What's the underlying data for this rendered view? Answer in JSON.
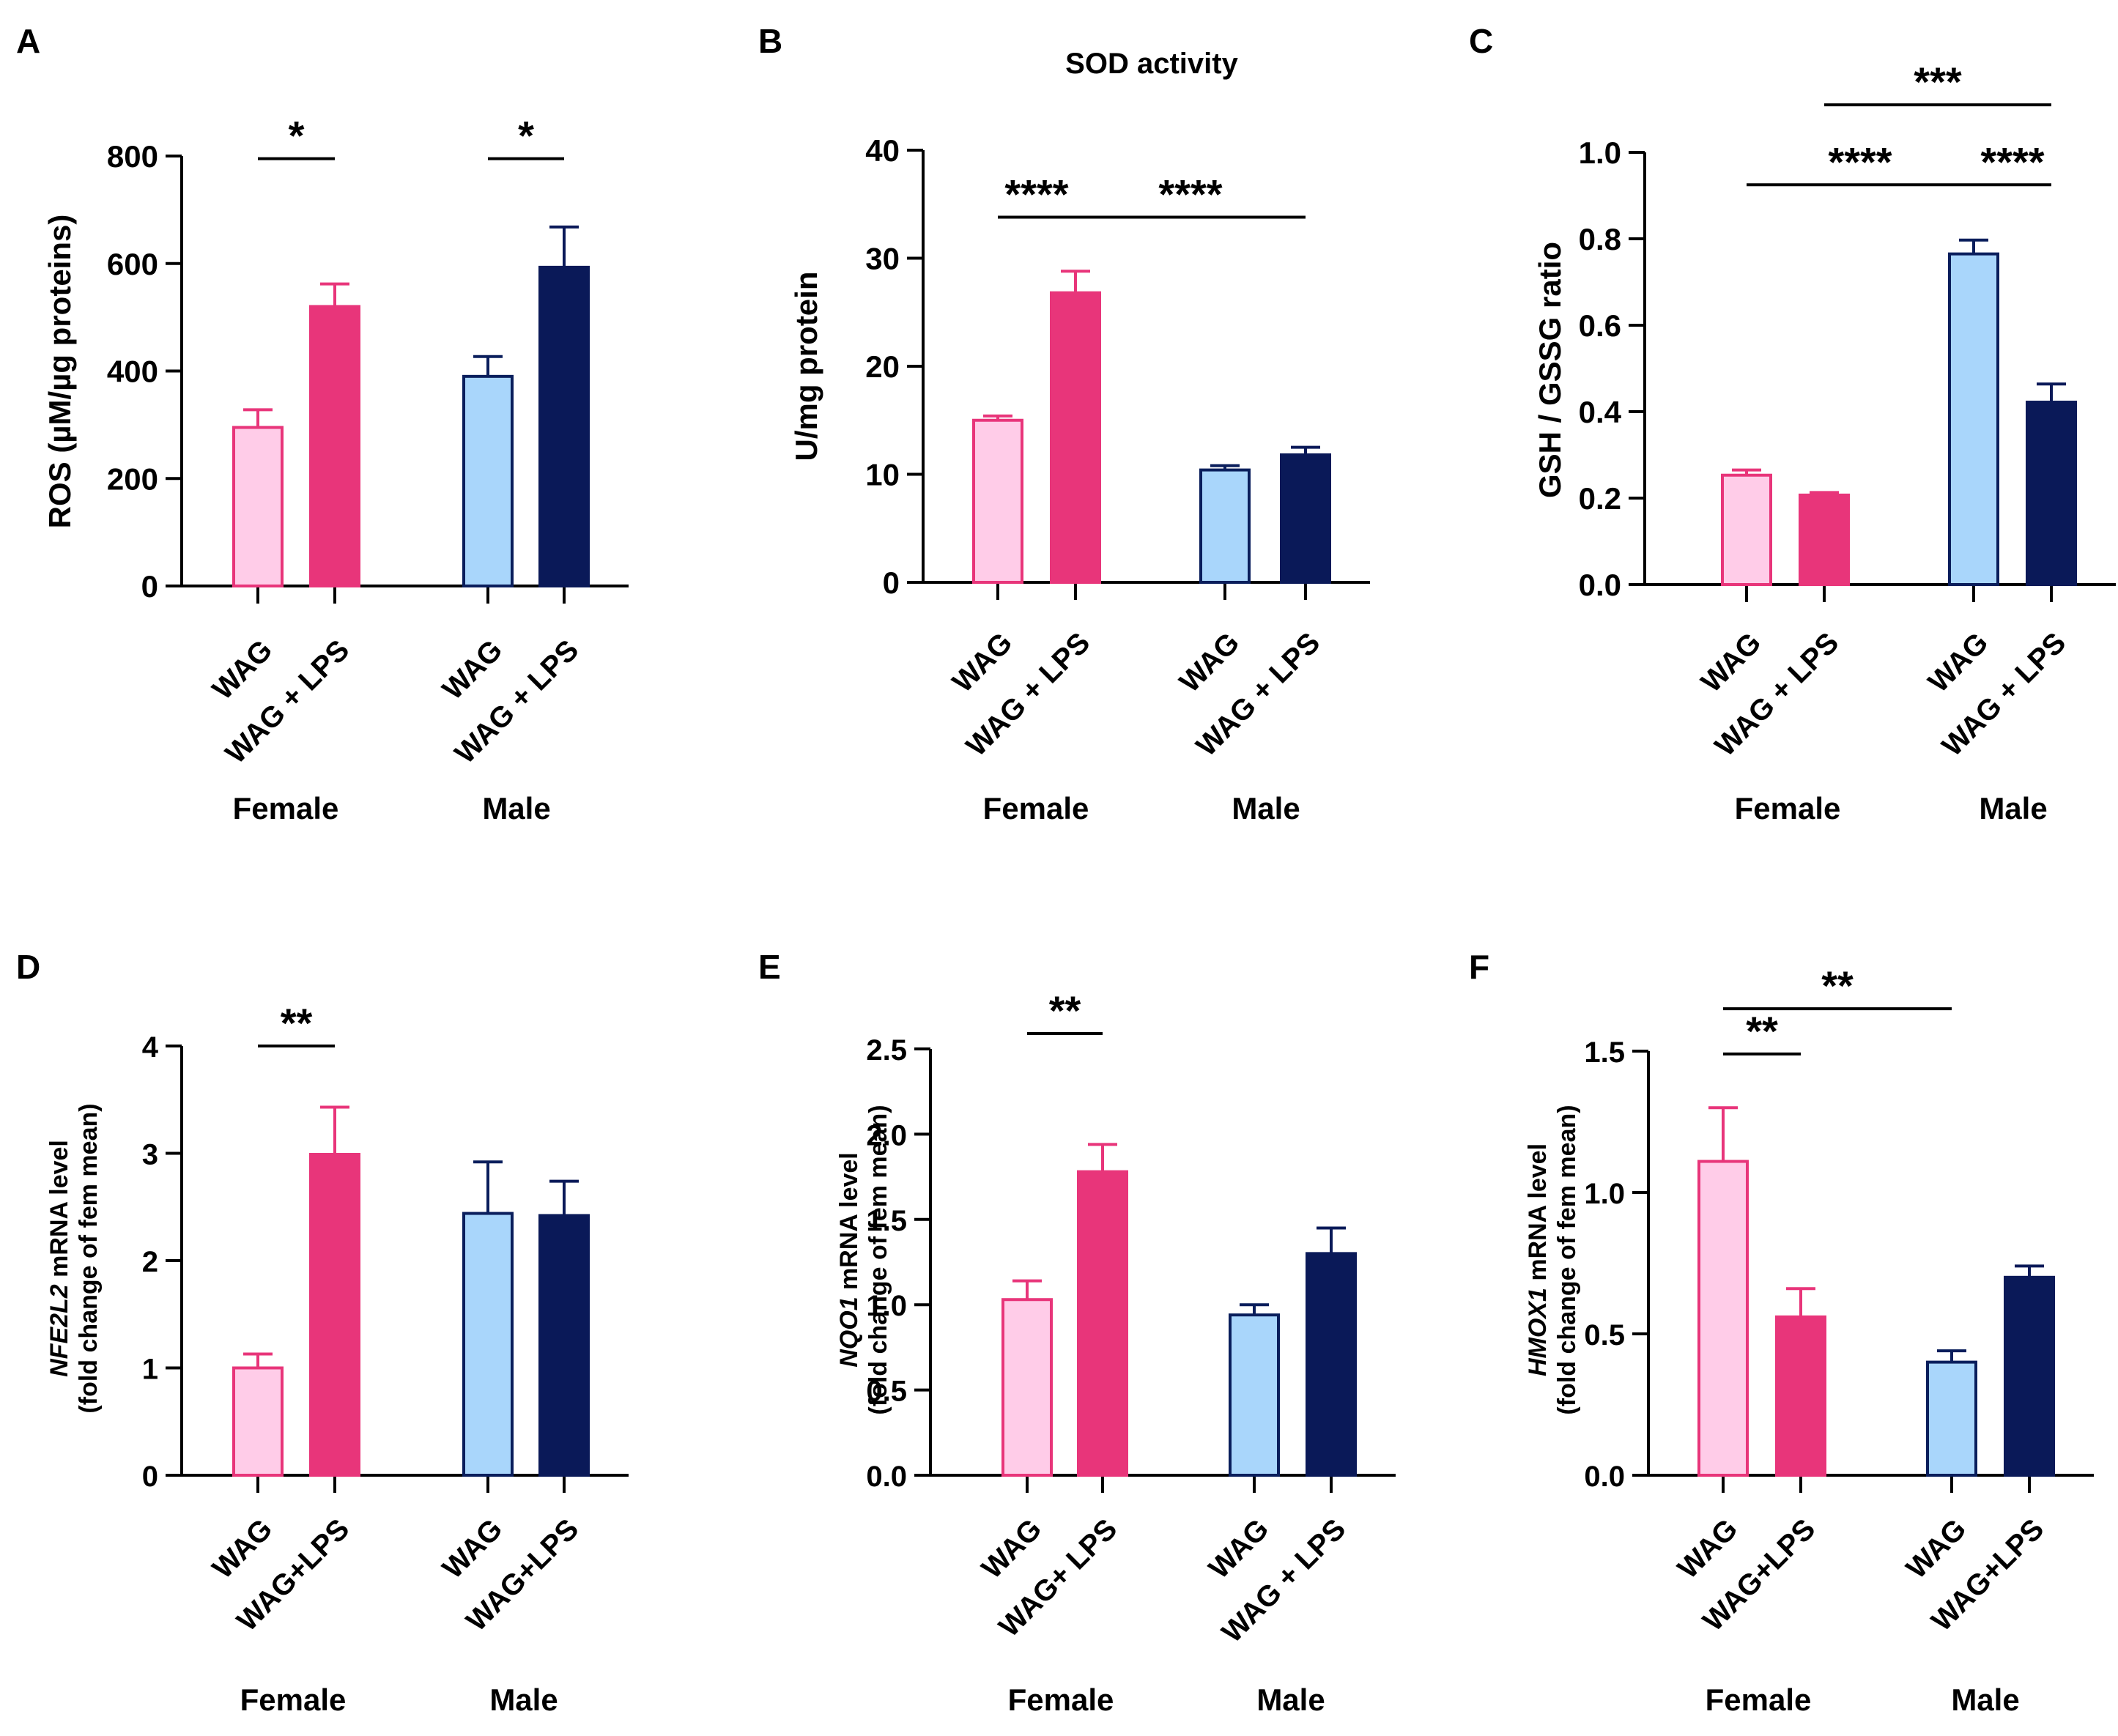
{
  "colors": {
    "female_wag_fill": "#FFCCE8",
    "female_wag_stroke": "#E8357A",
    "female_lps": "#E8357A",
    "male_wag_fill": "#A9D6FB",
    "male_wag_stroke": "#0A1E5C",
    "male_lps": "#0A1958",
    "axis": "#000000"
  },
  "chart_data": [
    {
      "type": "bar",
      "panel_label": "A",
      "title": "",
      "ylabel": "ROS (µM/µg proteins)",
      "ylabel_parts": [],
      "ylim": [
        0,
        800
      ],
      "yticks": [
        "0",
        "200",
        "400",
        "600",
        "800"
      ],
      "categories": [
        "WAG",
        "WAG + LPS",
        "WAG",
        "WAG + LPS"
      ],
      "groups": [
        "Female",
        "Male"
      ],
      "values": [
        295,
        520,
        390,
        593
      ],
      "errors": [
        33,
        42,
        37,
        75
      ],
      "significance": [
        {
          "label": "*",
          "from": 0,
          "to": 1,
          "y": 795
        },
        {
          "label": "*",
          "from": 2,
          "to": 3,
          "y": 795
        }
      ]
    },
    {
      "type": "bar",
      "panel_label": "B",
      "title": "SOD activity",
      "ylabel": "U/mg protein",
      "ylabel_parts": [],
      "ylim": [
        0,
        40
      ],
      "yticks": [
        "0",
        "10",
        "20",
        "30",
        "40"
      ],
      "categories": [
        "WAG",
        "WAG + LPS",
        "WAG",
        "WAG + LPS"
      ],
      "groups": [
        "Female",
        "Male"
      ],
      "values": [
        15,
        26.8,
        10.4,
        11.8
      ],
      "errors": [
        0.4,
        2.0,
        0.4,
        0.7
      ],
      "significance": [
        {
          "label": "****",
          "from": 0,
          "to": 1,
          "y": 33.8
        },
        {
          "label": "****",
          "from": 1,
          "to": 3,
          "y": 33.8
        }
      ]
    },
    {
      "type": "bar",
      "panel_label": "C",
      "title": "",
      "ylabel": "GSH / GSSG ratio",
      "ylabel_parts": [],
      "ylim": [
        0,
        1.0
      ],
      "yticks": [
        "0.0",
        "0.2",
        "0.4",
        "0.6",
        "0.8",
        "1.0"
      ],
      "categories": [
        "WAG",
        "WAG + LPS",
        "WAG",
        "WAG + LPS"
      ],
      "groups": [
        "Female",
        "Male"
      ],
      "values": [
        0.253,
        0.207,
        0.765,
        0.422
      ],
      "errors": [
        0.012,
        0.006,
        0.032,
        0.042
      ],
      "significance": [
        {
          "label": "****",
          "from": 0,
          "to": 2,
          "y": 0.925
        },
        {
          "label": "****",
          "from": 2,
          "to": 3,
          "y": 0.925
        },
        {
          "label": "***",
          "from": 1,
          "to": 3,
          "y": 1.11
        }
      ]
    },
    {
      "type": "bar",
      "panel_label": "D",
      "title": "",
      "ylabel": "NFE2L2 mRNA level (fold change of fem mean)",
      "ylabel_parts": [
        "NFE2L2",
        " mRNA level",
        "(fold change of fem mean)"
      ],
      "ylim": [
        0,
        4
      ],
      "yticks": [
        "0",
        "1",
        "2",
        "3",
        "4"
      ],
      "categories": [
        "WAG",
        "WAG+LPS",
        "WAG",
        "WAG+LPS"
      ],
      "groups": [
        "Female",
        "Male"
      ],
      "values": [
        1.0,
        2.99,
        2.44,
        2.42
      ],
      "errors": [
        0.13,
        0.44,
        0.48,
        0.32
      ],
      "significance": [
        {
          "label": "**",
          "from": 0,
          "to": 1,
          "y": 4.0
        }
      ]
    },
    {
      "type": "bar",
      "panel_label": "E",
      "title": "",
      "ylabel": "NQO1 mRNA level (fold change of fem mean)",
      "ylabel_parts": [
        "NQO1",
        " mRNA level",
        "(fold change of fem mean)"
      ],
      "ylim": [
        0,
        2.5
      ],
      "yticks": [
        "0.0",
        "0.5",
        "1.0",
        "1.5",
        "2.0",
        "2.5"
      ],
      "categories": [
        "WAG",
        "WAG+ LPS",
        "WAG",
        "WAG + LPS"
      ],
      "groups": [
        "Female",
        "Male"
      ],
      "values": [
        1.03,
        1.78,
        0.94,
        1.3
      ],
      "errors": [
        0.11,
        0.16,
        0.06,
        0.15
      ],
      "significance": [
        {
          "label": "**",
          "from": 0,
          "to": 1,
          "y": 2.59
        }
      ]
    },
    {
      "type": "bar",
      "panel_label": "F",
      "title": "",
      "ylabel": "HMOX1 mRNA level (fold change of fem mean)",
      "ylabel_parts": [
        "HMOX1",
        " mRNA level",
        "(fold change of fem mean)"
      ],
      "ylim": [
        0,
        1.5
      ],
      "yticks": [
        "0.0",
        "0.5",
        "1.0",
        "1.5"
      ],
      "categories": [
        "WAG",
        "WAG+LPS",
        "WAG",
        "WAG+LPS"
      ],
      "groups": [
        "Female",
        "Male"
      ],
      "values": [
        1.11,
        0.56,
        0.4,
        0.7
      ],
      "errors": [
        0.19,
        0.1,
        0.04,
        0.04
      ],
      "significance": [
        {
          "label": "**",
          "from": 0,
          "to": 1,
          "y": 1.49
        },
        {
          "label": "**",
          "from": 0,
          "to": 2,
          "y": 1.65
        }
      ]
    }
  ]
}
